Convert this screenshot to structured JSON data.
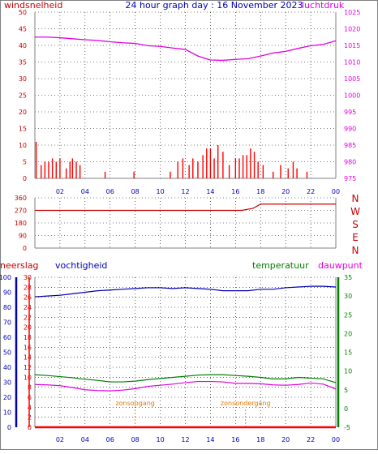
{
  "title": "24 hour graph day : 16 November 2023",
  "colors": {
    "red": "#ff0000",
    "darkred": "#c80000",
    "magenta": "#e000e0",
    "blue": "#0000b4",
    "green": "#008000",
    "orange": "#e07800",
    "axis": "#808080",
    "grid": "#000000"
  },
  "chart_data": [
    {
      "type": "line",
      "label_left": "windsnelheid",
      "label_right": "luchtdruk",
      "ylim_left": [
        0,
        50
      ],
      "yticks_left": [
        "0",
        "5",
        "10",
        "15",
        "20",
        "25",
        "30",
        "35",
        "40",
        "45",
        "50"
      ],
      "ylim_right": [
        975,
        1025
      ],
      "yticks_right": [
        "975",
        "980",
        "985",
        "990",
        "995",
        "1000",
        "1005",
        "1010",
        "1015",
        "1020",
        "1025"
      ],
      "xticks": [
        "02",
        "04",
        "06",
        "08",
        "10",
        "12",
        "14",
        "16",
        "18",
        "20",
        "22",
        "00"
      ],
      "series": [
        {
          "name": "luchtdruk",
          "axis": "right",
          "x": [
            0,
            1,
            2,
            3,
            4,
            5,
            6,
            7,
            8,
            9,
            10,
            11,
            12,
            13,
            14,
            15,
            16,
            17,
            18,
            19,
            20,
            21,
            22,
            23,
            24
          ],
          "y": [
            1017.5,
            1017.5,
            1017.3,
            1017,
            1016.7,
            1016.5,
            1016.1,
            1015.8,
            1015.6,
            1014.9,
            1014.7,
            1014.2,
            1013.8,
            1011.8,
            1010.6,
            1010.5,
            1010.8,
            1011,
            1011.8,
            1012.7,
            1013.2,
            1014.1,
            1014.9,
            1015.3,
            1016.4
          ]
        },
        {
          "name": "windsnelheid (gust)",
          "axis": "left",
          "x": [
            0.1,
            0.5,
            0.8,
            1.1,
            1.4,
            1.7,
            2.0,
            2.5,
            2.8,
            3.0,
            3.3,
            3.6,
            5.6,
            7.9,
            10.8,
            11.4,
            11.8,
            12.3,
            12.6,
            13.0,
            13.4,
            13.7,
            14.0,
            14.3,
            14.6,
            15.0,
            15.5,
            16.0,
            16.3,
            16.6,
            16.9,
            17.2,
            17.5,
            17.8,
            18.2,
            19.0,
            19.6,
            20.2,
            20.6,
            20.9,
            21.7
          ],
          "y": [
            11,
            4,
            5,
            5,
            6,
            5,
            6,
            3,
            5,
            6,
            5,
            4,
            2,
            2,
            2,
            5,
            6,
            4,
            6,
            5,
            7,
            9,
            9,
            6,
            10,
            8,
            4,
            6,
            6,
            7,
            7,
            9,
            8,
            5,
            4,
            2,
            4,
            3,
            5,
            3,
            2
          ]
        }
      ]
    },
    {
      "type": "line",
      "ylim_left": [
        0,
        360
      ],
      "yticks_left": [
        "0",
        "90",
        "180",
        "270",
        "360"
      ],
      "direction_labels": [
        "N",
        "W",
        "S",
        "E",
        "N"
      ],
      "xticks": [
        "02",
        "04",
        "06",
        "08",
        "10",
        "12",
        "14",
        "16",
        "18",
        "20",
        "22",
        "00"
      ],
      "series": [
        {
          "name": "windrichting",
          "x": [
            0,
            16.5,
            17.4,
            18,
            24
          ],
          "y": [
            270,
            270,
            285,
            315,
            315
          ]
        }
      ]
    },
    {
      "type": "line",
      "labels": [
        "neerslag",
        "vochtigheid",
        "temperatuur",
        "dauwpunt"
      ],
      "ylim_neerslag": [
        0,
        30
      ],
      "yticks_neerslag": [
        "0",
        "2",
        "4",
        "6",
        "8",
        "10",
        "12",
        "14",
        "16",
        "18",
        "20",
        "22",
        "24",
        "26",
        "28",
        "30"
      ],
      "ylim_vochtigheid": [
        0,
        100
      ],
      "yticks_vochtigheid": [
        "0",
        "10",
        "20",
        "30",
        "40",
        "50",
        "60",
        "70",
        "80",
        "90",
        "100"
      ],
      "ylim_temp": [
        -5,
        35
      ],
      "yticks_temp": [
        "-5",
        "0",
        "5",
        "10",
        "15",
        "20",
        "25",
        "30",
        "35"
      ],
      "xticks": [
        "02",
        "04",
        "06",
        "08",
        "10",
        "12",
        "14",
        "16",
        "18",
        "20",
        "22",
        "00"
      ],
      "annotations": [
        {
          "text": "zonsopgang",
          "x": 8.0
        },
        {
          "text": "zonsondergang",
          "x": 16.8
        }
      ],
      "series": [
        {
          "name": "vochtigheid",
          "x": [
            0,
            1,
            2,
            3,
            4,
            5,
            6,
            7,
            8,
            9,
            10,
            11,
            12,
            13,
            14,
            15,
            16,
            17,
            18,
            19,
            20,
            21,
            22,
            23,
            24
          ],
          "y": [
            87,
            87.5,
            88,
            89,
            90,
            91,
            91.5,
            92,
            92.5,
            93,
            93,
            92.5,
            93,
            92.5,
            92,
            91,
            91,
            91,
            92,
            92,
            93,
            93.5,
            94,
            94,
            93.5
          ]
        },
        {
          "name": "temperatuur",
          "x": [
            0,
            1,
            2,
            3,
            4,
            5,
            6,
            7,
            8,
            9,
            10,
            11,
            12,
            13,
            14,
            15,
            16,
            17,
            18,
            19,
            20,
            21,
            22,
            23,
            24
          ],
          "y": [
            9,
            8.8,
            8.5,
            8.2,
            7.8,
            7.5,
            7.1,
            7.1,
            7.3,
            7.7,
            8,
            8.3,
            8.6,
            8.9,
            9,
            9,
            8.8,
            8.6,
            8.3,
            7.9,
            7.9,
            8.3,
            8.1,
            7.9,
            6.9
          ]
        },
        {
          "name": "dauwpunt",
          "x": [
            0,
            1,
            2,
            3,
            4,
            5,
            6,
            7,
            8,
            9,
            10,
            11,
            12,
            13,
            14,
            15,
            16,
            17,
            18,
            19,
            20,
            21,
            22,
            23,
            24
          ],
          "y": [
            6.4,
            6.3,
            6.1,
            5.6,
            5,
            4.8,
            4.7,
            4.9,
            5.3,
            5.9,
            6.2,
            6.5,
            6.9,
            7.2,
            7.2,
            7.1,
            6.7,
            6.7,
            6.6,
            6.3,
            6.2,
            6.4,
            6.8,
            6.5,
            5.2
          ]
        },
        {
          "name": "neerslag",
          "x": [
            0,
            24
          ],
          "y": [
            0,
            0
          ]
        }
      ]
    }
  ]
}
